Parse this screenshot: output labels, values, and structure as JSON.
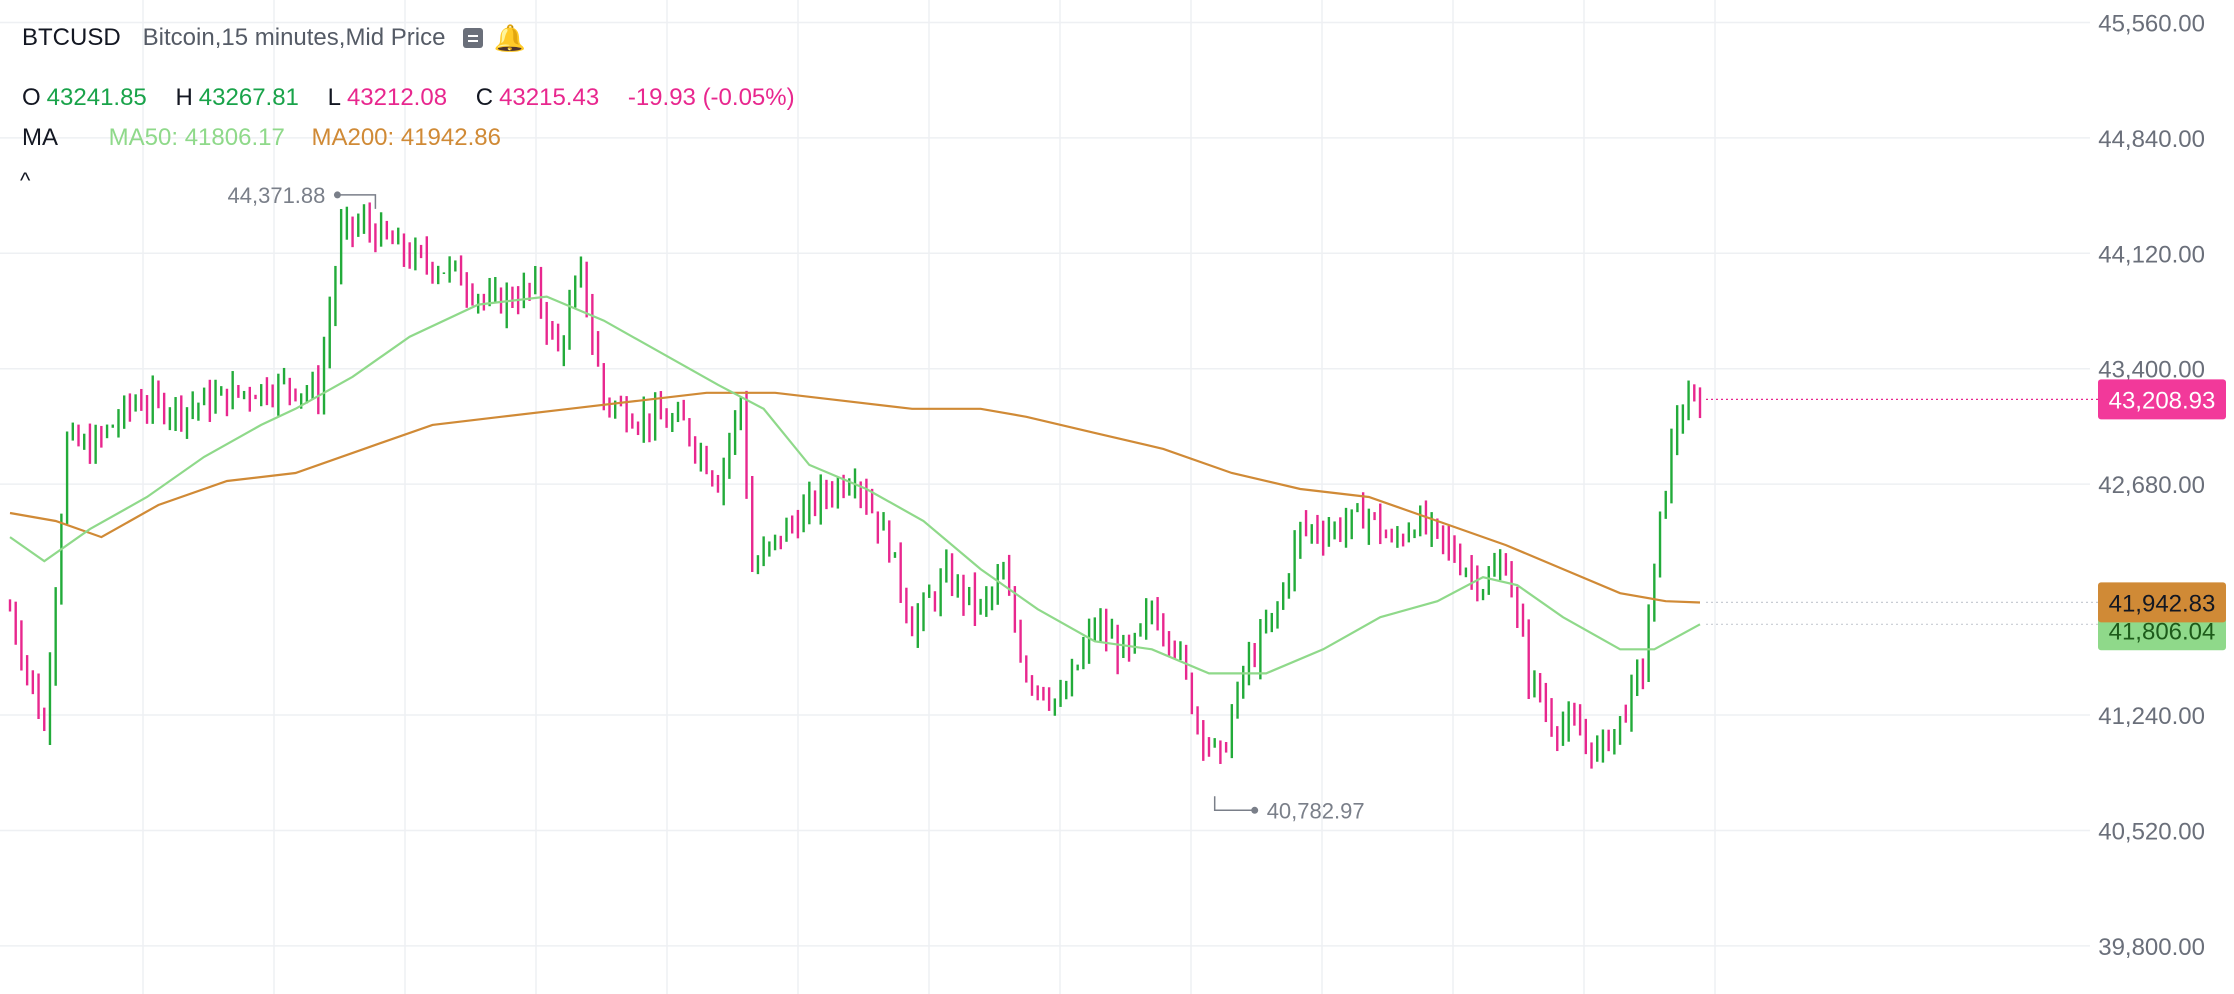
{
  "header": {
    "symbol": "BTCUSD",
    "description": "Bitcoin,15 minutes,Mid Price",
    "icons": [
      "note-icon",
      "bell-icon"
    ]
  },
  "ohlc": {
    "o_label": "O",
    "o_value": "43241.85",
    "h_label": "H",
    "h_value": "43267.81",
    "l_label": "L",
    "l_value": "43212.08",
    "c_label": "C",
    "c_value": "43215.43",
    "change": "-19.93 (-0.05%)"
  },
  "indicators": {
    "title": "MA",
    "ma50": "MA50: 41806.17",
    "ma200": "MA200: 41942.86",
    "collapse_glyph": "^"
  },
  "colors": {
    "up": "#22ab3a",
    "down": "#e8278e",
    "ma50": "#8fd98a",
    "ma200": "#d08a36",
    "grid": "#eef0f3",
    "axis_text": "#6a6f7a"
  },
  "chart_data": {
    "type": "candlestick",
    "y_axis": {
      "position": "right",
      "range": [
        39500,
        45700
      ],
      "ticks": [
        "45,560.00",
        "44,840.00",
        "44,120.00",
        "43,400.00",
        "42,680.00",
        "41,240.00",
        "40,520.00",
        "39,800.00"
      ]
    },
    "grid": true,
    "price_labels": {
      "last": "43,208.93",
      "ma200": "41,942.83",
      "ma50": "41,806.04"
    },
    "annotations": {
      "high": "44,371.88",
      "low": "40,782.97"
    },
    "series": [
      {
        "name": "MA50"
      },
      {
        "name": "MA200"
      }
    ],
    "close_path": [
      [
        0,
        41900
      ],
      [
        6,
        41150
      ],
      [
        10,
        42950
      ],
      [
        14,
        42900
      ],
      [
        22,
        43200
      ],
      [
        30,
        43150
      ],
      [
        40,
        43250
      ],
      [
        48,
        43300
      ],
      [
        54,
        43250
      ],
      [
        58,
        44250
      ],
      [
        62,
        44300
      ],
      [
        70,
        44100
      ],
      [
        78,
        44000
      ],
      [
        84,
        43800
      ],
      [
        92,
        43900
      ],
      [
        96,
        43500
      ],
      [
        100,
        44000
      ],
      [
        104,
        43200
      ],
      [
        110,
        43100
      ],
      [
        118,
        43050
      ],
      [
        124,
        42700
      ],
      [
        128,
        43200
      ],
      [
        130,
        42150
      ],
      [
        136,
        42400
      ],
      [
        142,
        42600
      ],
      [
        148,
        42750
      ],
      [
        154,
        42300
      ],
      [
        158,
        41800
      ],
      [
        164,
        42100
      ],
      [
        170,
        41900
      ],
      [
        174,
        42100
      ],
      [
        178,
        41500
      ],
      [
        184,
        41300
      ],
      [
        190,
        41800
      ],
      [
        196,
        41600
      ],
      [
        200,
        41900
      ],
      [
        204,
        41700
      ],
      [
        208,
        41200
      ],
      [
        212,
        40950
      ],
      [
        216,
        41500
      ],
      [
        222,
        41900
      ],
      [
        226,
        42400
      ],
      [
        232,
        42400
      ],
      [
        238,
        42500
      ],
      [
        242,
        42300
      ],
      [
        246,
        42450
      ],
      [
        250,
        42350
      ],
      [
        254,
        42200
      ],
      [
        258,
        42050
      ],
      [
        262,
        42200
      ],
      [
        266,
        41500
      ],
      [
        270,
        41200
      ],
      [
        274,
        41150
      ],
      [
        278,
        41000
      ],
      [
        282,
        41200
      ],
      [
        286,
        41550
      ],
      [
        290,
        42700
      ],
      [
        292,
        43100
      ],
      [
        296,
        43208
      ]
    ],
    "ma50_path": [
      [
        0,
        42350
      ],
      [
        6,
        42200
      ],
      [
        14,
        42400
      ],
      [
        24,
        42600
      ],
      [
        34,
        42850
      ],
      [
        44,
        43050
      ],
      [
        50,
        43150
      ],
      [
        60,
        43350
      ],
      [
        70,
        43600
      ],
      [
        82,
        43800
      ],
      [
        94,
        43850
      ],
      [
        104,
        43700
      ],
      [
        114,
        43500
      ],
      [
        124,
        43300
      ],
      [
        132,
        43150
      ],
      [
        140,
        42800
      ],
      [
        150,
        42650
      ],
      [
        160,
        42450
      ],
      [
        170,
        42150
      ],
      [
        180,
        41900
      ],
      [
        190,
        41700
      ],
      [
        200,
        41650
      ],
      [
        210,
        41500
      ],
      [
        220,
        41500
      ],
      [
        230,
        41650
      ],
      [
        240,
        41850
      ],
      [
        250,
        41950
      ],
      [
        258,
        42100
      ],
      [
        264,
        42050
      ],
      [
        272,
        41850
      ],
      [
        282,
        41650
      ],
      [
        288,
        41650
      ],
      [
        296,
        41806
      ]
    ],
    "ma200_path": [
      [
        0,
        42500
      ],
      [
        8,
        42450
      ],
      [
        16,
        42350
      ],
      [
        26,
        42550
      ],
      [
        38,
        42700
      ],
      [
        50,
        42750
      ],
      [
        62,
        42900
      ],
      [
        74,
        43050
      ],
      [
        86,
        43100
      ],
      [
        98,
        43150
      ],
      [
        110,
        43200
      ],
      [
        122,
        43250
      ],
      [
        134,
        43250
      ],
      [
        146,
        43200
      ],
      [
        158,
        43150
      ],
      [
        170,
        43150
      ],
      [
        178,
        43100
      ],
      [
        190,
        43000
      ],
      [
        202,
        42900
      ],
      [
        214,
        42750
      ],
      [
        226,
        42650
      ],
      [
        238,
        42600
      ],
      [
        250,
        42450
      ],
      [
        262,
        42300
      ],
      [
        272,
        42150
      ],
      [
        282,
        42000
      ],
      [
        290,
        41950
      ],
      [
        296,
        41942
      ]
    ]
  }
}
